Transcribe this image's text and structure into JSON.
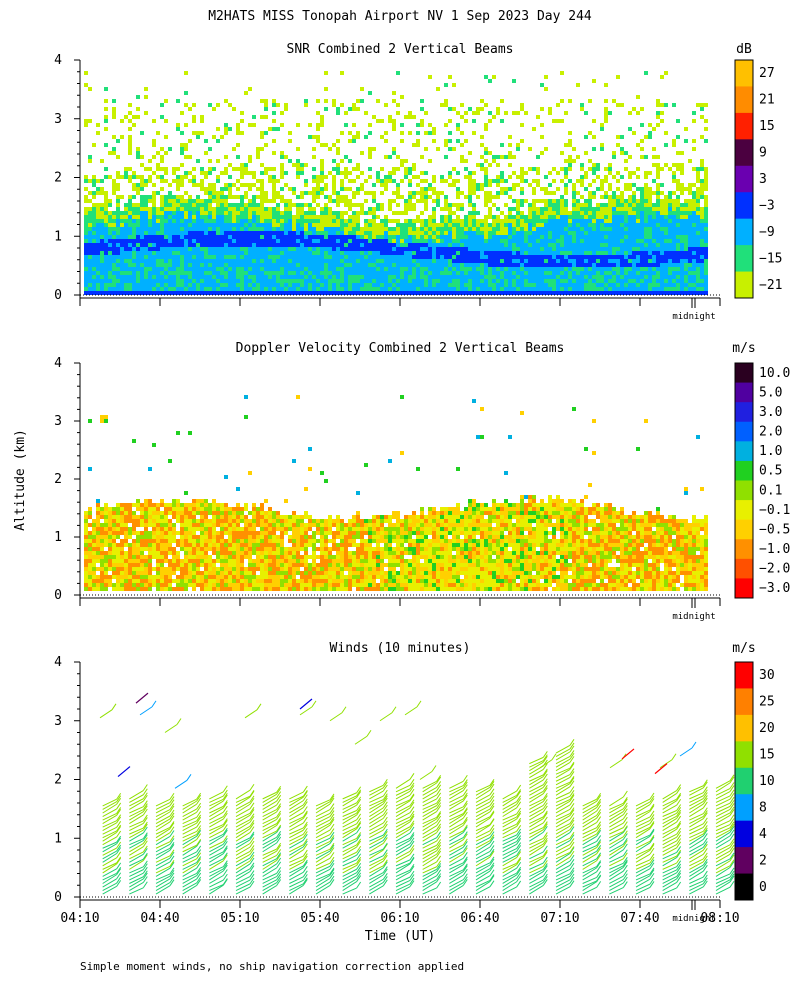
{
  "header": {
    "title": "M2HATS MISS Tonopah Airport NV   1 Sep 2023 Day 244"
  },
  "shared": {
    "ylabel": "Altitude (km)",
    "xlabel": "Time (UT)",
    "x_ticks": [
      "04:10",
      "04:40",
      "05:10",
      "05:40",
      "06:10",
      "06:40",
      "07:10",
      "07:40",
      "08:10"
    ],
    "midnight_label": "midnight",
    "footer_note": "Simple moment winds, no ship navigation correction applied"
  },
  "chart_data": [
    {
      "type": "heatmap",
      "title": "SNR Combined 2 Vertical Beams",
      "unit": "dB",
      "ylim": [
        0,
        4
      ],
      "y_ticks": [
        "0",
        "1",
        "2",
        "3",
        "4"
      ],
      "x_range": [
        "04:10",
        "08:10"
      ],
      "colorbar": {
        "labels": [
          "27",
          "21",
          "15",
          "9",
          "3",
          "−3",
          "−9",
          "−15",
          "−21"
        ],
        "colors": [
          "#ffc000",
          "#ff8c00",
          "#ff2000",
          "#4b0040",
          "#6a00b0",
          "#0030ff",
          "#00b0ff",
          "#20e07a",
          "#c8f000"
        ]
      },
      "description_layers": [
        {
          "from_km": 0.1,
          "to_km": 0.3,
          "level": "-9"
        },
        {
          "from_km": 0.3,
          "to_km": 1.2,
          "level": "-3 to -9"
        },
        {
          "from_km": 1.2,
          "to_km": 1.6,
          "level": "-15"
        },
        {
          "from_km": 1.6,
          "to_km": 3.5,
          "level": "-21 (sparse)"
        }
      ]
    },
    {
      "type": "heatmap",
      "title": "Doppler Velocity Combined 2 Vertical Beams",
      "unit": "m/s",
      "ylim": [
        0,
        4
      ],
      "y_ticks": [
        "0",
        "1",
        "2",
        "3",
        "4"
      ],
      "x_range": [
        "04:10",
        "08:10"
      ],
      "colorbar": {
        "labels": [
          "10.0",
          "5.0",
          "3.0",
          "2.0",
          "1.0",
          "0.5",
          "0.1",
          "−0.1",
          "−0.5",
          "−1.0",
          "−2.0",
          "−3.0"
        ],
        "colors": [
          "#2a0020",
          "#5000a0",
          "#2020e0",
          "#0060ff",
          "#00b0e0",
          "#20d020",
          "#90e000",
          "#e8f000",
          "#ffd000",
          "#ff9000",
          "#ff5000",
          "#ff0000"
        ]
      }
    },
    {
      "type": "wind_barbs",
      "title": "Winds (10 minutes)",
      "unit": "m/s",
      "ylim": [
        0,
        4
      ],
      "y_ticks": [
        "0",
        "1",
        "2",
        "3",
        "4"
      ],
      "x_range": [
        "04:10",
        "08:10"
      ],
      "colorbar": {
        "labels": [
          "30",
          "25",
          "20",
          "15",
          "10",
          "8",
          "4",
          "2",
          "0"
        ],
        "colors": [
          "#ff0000",
          "#ff8000",
          "#ffc000",
          "#90e000",
          "#20d070",
          "#00a0ff",
          "#0000e0",
          "#600060",
          "#000000"
        ]
      },
      "profile_times_min": [
        10,
        20,
        30,
        40,
        50,
        60,
        70,
        80,
        90,
        100,
        110,
        120,
        130,
        140,
        150,
        160,
        170,
        180,
        190,
        200,
        210,
        220,
        230,
        240
      ],
      "profile_top_km": [
        1.6,
        1.7,
        1.6,
        1.6,
        1.7,
        1.7,
        1.7,
        1.7,
        1.6,
        1.7,
        1.8,
        1.9,
        1.9,
        1.9,
        1.8,
        1.7,
        2.3,
        2.5,
        1.6,
        1.6,
        1.6,
        1.7,
        1.8,
        1.9
      ]
    }
  ]
}
